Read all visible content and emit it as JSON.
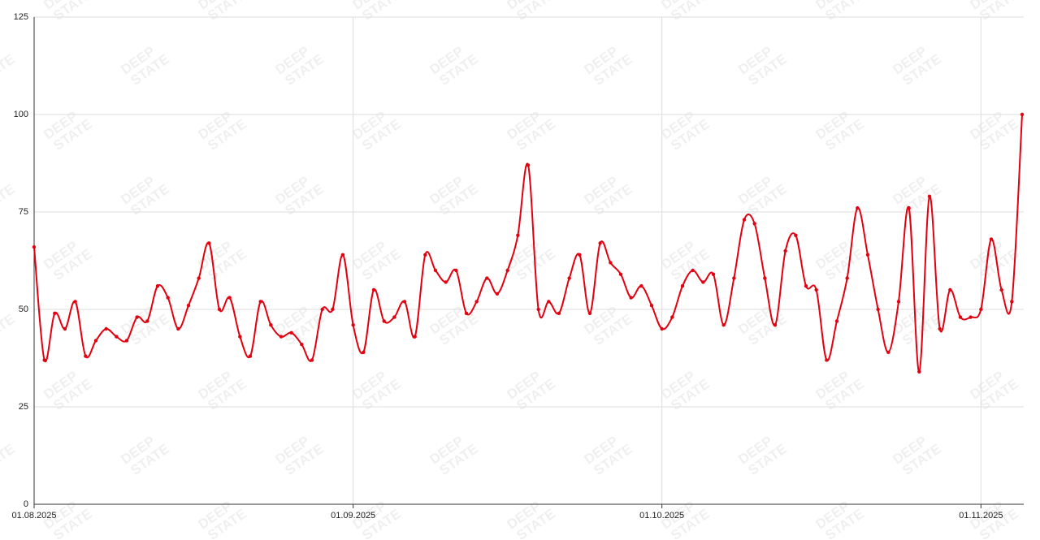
{
  "chart_data": {
    "type": "line",
    "watermark": [
      "DEEP",
      "STATE"
    ],
    "x": [
      "01.08.2025",
      "02.08.2025",
      "03.08.2025",
      "04.08.2025",
      "05.08.2025",
      "06.08.2025",
      "07.08.2025",
      "08.08.2025",
      "09.08.2025",
      "10.08.2025",
      "11.08.2025",
      "12.08.2025",
      "13.08.2025",
      "14.08.2025",
      "15.08.2025",
      "16.08.2025",
      "17.08.2025",
      "18.08.2025",
      "19.08.2025",
      "20.08.2025",
      "21.08.2025",
      "22.08.2025",
      "23.08.2025",
      "24.08.2025",
      "25.08.2025",
      "26.08.2025",
      "27.08.2025",
      "28.08.2025",
      "29.08.2025",
      "30.08.2025",
      "31.08.2025",
      "01.09.2025",
      "02.09.2025",
      "03.09.2025",
      "04.09.2025",
      "05.09.2025",
      "06.09.2025",
      "07.09.2025",
      "08.09.2025",
      "09.09.2025",
      "10.09.2025",
      "11.09.2025",
      "12.09.2025",
      "13.09.2025",
      "14.09.2025",
      "15.09.2025",
      "16.09.2025",
      "17.09.2025",
      "18.09.2025",
      "19.09.2025",
      "20.09.2025",
      "21.09.2025",
      "22.09.2025",
      "23.09.2025",
      "24.09.2025",
      "25.09.2025",
      "26.09.2025",
      "27.09.2025",
      "28.09.2025",
      "29.09.2025",
      "30.09.2025",
      "01.10.2025",
      "02.10.2025",
      "03.10.2025",
      "04.10.2025",
      "05.10.2025",
      "06.10.2025",
      "07.10.2025",
      "08.10.2025",
      "09.10.2025",
      "10.10.2025",
      "11.10.2025",
      "12.10.2025",
      "13.10.2025",
      "14.10.2025",
      "15.10.2025",
      "16.10.2025",
      "17.10.2025",
      "18.10.2025",
      "19.10.2025",
      "20.10.2025",
      "21.10.2025",
      "22.10.2025",
      "23.10.2025",
      "24.10.2025",
      "25.10.2025",
      "26.10.2025",
      "27.10.2025",
      "28.10.2025",
      "29.10.2025",
      "30.10.2025",
      "31.10.2025",
      "01.11.2025",
      "02.11.2025",
      "03.11.2025",
      "04.11.2025",
      "05.11.2025"
    ],
    "series": [
      {
        "color": "#e3000f",
        "values": [
          66,
          37,
          49,
          45,
          52,
          38,
          42,
          45,
          43,
          42,
          48,
          47,
          56,
          53,
          45,
          51,
          58,
          67,
          50,
          53,
          43,
          38,
          52,
          46,
          43,
          44,
          41,
          37,
          50,
          50,
          64,
          46,
          39,
          55,
          47,
          48,
          52,
          43,
          64,
          60,
          57,
          60,
          49,
          52,
          58,
          54,
          60,
          69,
          87,
          50,
          52,
          49,
          58,
          64,
          49,
          67,
          62,
          59,
          53,
          56,
          51,
          45,
          48,
          56,
          60,
          57,
          59,
          46,
          58,
          73,
          72,
          58,
          46,
          65,
          69,
          56,
          55,
          37,
          47,
          58,
          76,
          64,
          50,
          39,
          52,
          76,
          34,
          79,
          45,
          55,
          48,
          48,
          50,
          68,
          55,
          52,
          100
        ]
      }
    ],
    "xticks": [
      "01.08.2025",
      "01.09.2025",
      "01.10.2025",
      "01.11.2025"
    ],
    "ylim": [
      0,
      125
    ],
    "yticks": [
      0,
      25,
      50,
      75,
      100,
      125
    ],
    "grid": true
  }
}
